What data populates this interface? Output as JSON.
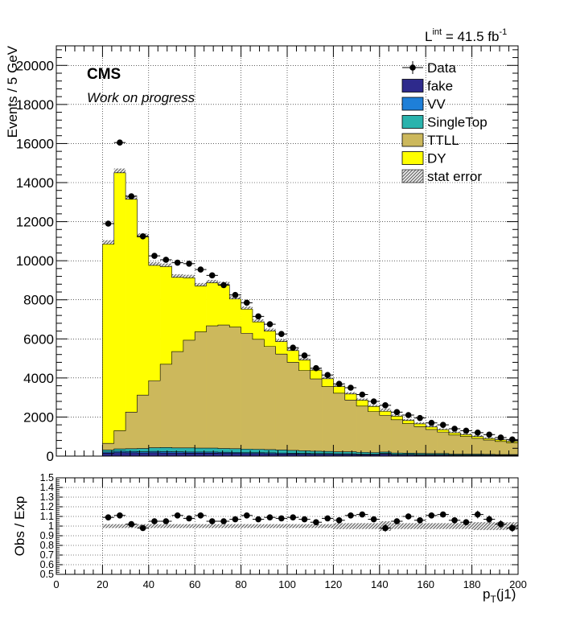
{
  "header": {
    "lumi_prefix": "L",
    "lumi_sup": "int",
    "lumi_value": " = 41.5 fb",
    "lumi_unit_sup": "-1",
    "experiment": "CMS",
    "status": "Work on progress"
  },
  "colors": {
    "fake": "#2e2a8c",
    "VV": "#1e7fd8",
    "SingleTop": "#2ab3ad",
    "TTLL": "#ccb85c",
    "DY": "#ffff00",
    "data": "#000000"
  },
  "chart_data": [
    {
      "type": "bar",
      "subtype": "stacked-histogram",
      "ylabel": "Events / 5 GeV",
      "xlim": [
        0,
        200
      ],
      "ylim": [
        0,
        21000
      ],
      "yticks": [
        0,
        2000,
        4000,
        6000,
        8000,
        10000,
        12000,
        14000,
        16000,
        18000,
        20000
      ],
      "grid": true,
      "bins_low_edge": [
        20,
        25,
        30,
        35,
        40,
        45,
        50,
        55,
        60,
        65,
        70,
        75,
        80,
        85,
        90,
        95,
        100,
        105,
        110,
        115,
        120,
        125,
        130,
        135,
        140,
        145,
        150,
        155,
        160,
        165,
        170,
        175,
        180,
        185,
        190,
        195
      ],
      "bin_width": 5,
      "series": [
        {
          "name": "fake",
          "values": [
            150,
            180,
            170,
            160,
            170,
            160,
            160,
            150,
            150,
            150,
            140,
            140,
            130,
            130,
            120,
            110,
            110,
            100,
            90,
            90,
            80,
            80,
            70,
            70,
            110,
            60,
            60,
            50,
            50,
            50,
            40,
            40,
            40,
            40,
            30,
            30
          ]
        },
        {
          "name": "VV",
          "values": [
            60,
            70,
            70,
            60,
            70,
            70,
            60,
            60,
            60,
            60,
            60,
            50,
            50,
            50,
            50,
            50,
            40,
            40,
            40,
            40,
            40,
            40,
            30,
            30,
            30,
            30,
            30,
            30,
            30,
            30,
            20,
            20,
            20,
            20,
            20,
            20
          ]
        },
        {
          "name": "SingleTop",
          "values": [
            100,
            120,
            140,
            170,
            190,
            210,
            200,
            210,
            200,
            200,
            190,
            190,
            180,
            170,
            160,
            150,
            140,
            130,
            120,
            110,
            100,
            100,
            90,
            80,
            70,
            70,
            60,
            60,
            50,
            50,
            40,
            40,
            40,
            30,
            30,
            30
          ]
        },
        {
          "name": "TTLL",
          "values": [
            340,
            930,
            1870,
            2730,
            3430,
            4260,
            4930,
            5510,
            5950,
            6260,
            6320,
            6220,
            5930,
            5630,
            5280,
            4910,
            4510,
            4110,
            3700,
            3320,
            3000,
            2650,
            2370,
            2100,
            1880,
            1700,
            1510,
            1370,
            1230,
            1100,
            980,
            900,
            810,
            730,
            670,
            600
          ]
        },
        {
          "name": "DY",
          "values": [
            10200,
            13200,
            10900,
            8100,
            5900,
            5000,
            3800,
            3200,
            2350,
            2200,
            2070,
            1440,
            1230,
            890,
            790,
            640,
            600,
            540,
            450,
            400,
            340,
            310,
            300,
            260,
            200,
            180,
            160,
            140,
            130,
            120,
            110,
            100,
            90,
            80,
            80,
            70
          ]
        },
        {
          "name": "stat error",
          "values": [
            200,
            220,
            200,
            180,
            170,
            160,
            160,
            150,
            150,
            150,
            150,
            140,
            140,
            130,
            130,
            120,
            120,
            110,
            110,
            100,
            100,
            100,
            90,
            90,
            150,
            90,
            80,
            80,
            80,
            70,
            70,
            70,
            70,
            60,
            60,
            60
          ]
        },
        {
          "name": "Data",
          "values": [
            11900,
            16050,
            13300,
            11250,
            10250,
            10050,
            9900,
            9850,
            9550,
            9250,
            8750,
            8250,
            7850,
            7150,
            6750,
            6250,
            5550,
            5150,
            4500,
            4150,
            3700,
            3500,
            3150,
            2800,
            2600,
            2250,
            2100,
            1950,
            1700,
            1600,
            1400,
            1300,
            1200,
            1100,
            950,
            850
          ]
        }
      ]
    },
    {
      "type": "scatter",
      "subtype": "ratio",
      "xlabel_main": "p",
      "xlabel_sub": "T",
      "xlabel_tail": "(j1)",
      "ylabel": "Obs / Exp",
      "xlim": [
        0,
        200
      ],
      "ylim": [
        0.5,
        1.5
      ],
      "yticks": [
        0.5,
        0.6,
        0.7,
        0.8,
        0.9,
        1,
        1.1,
        1.2,
        1.3,
        1.4,
        1.5
      ],
      "xticks": [
        0,
        20,
        40,
        60,
        80,
        100,
        120,
        140,
        160,
        180,
        200
      ],
      "grid": true,
      "x": [
        22.5,
        27.5,
        32.5,
        37.5,
        42.5,
        47.5,
        52.5,
        57.5,
        62.5,
        67.5,
        72.5,
        77.5,
        82.5,
        87.5,
        92.5,
        97.5,
        102.5,
        107.5,
        112.5,
        117.5,
        122.5,
        127.5,
        132.5,
        137.5,
        142.5,
        147.5,
        152.5,
        157.5,
        162.5,
        167.5,
        172.5,
        177.5,
        182.5,
        187.5,
        192.5,
        197.5
      ],
      "y": [
        1.09,
        1.11,
        1.02,
        0.98,
        1.05,
        1.05,
        1.11,
        1.08,
        1.11,
        1.05,
        1.05,
        1.07,
        1.11,
        1.07,
        1.09,
        1.08,
        1.09,
        1.07,
        1.04,
        1.08,
        1.06,
        1.11,
        1.12,
        1.07,
        0.98,
        1.05,
        1.1,
        1.06,
        1.11,
        1.12,
        1.06,
        1.04,
        1.12,
        1.07,
        1.02,
        0.98
      ],
      "err": [
        0.02,
        0.02,
        0.02,
        0.02,
        0.02,
        0.02,
        0.02,
        0.02,
        0.02,
        0.02,
        0.02,
        0.02,
        0.02,
        0.02,
        0.02,
        0.02,
        0.02,
        0.02,
        0.02,
        0.02,
        0.02,
        0.02,
        0.02,
        0.03,
        0.04,
        0.03,
        0.03,
        0.03,
        0.03,
        0.03,
        0.03,
        0.03,
        0.04,
        0.04,
        0.04,
        0.04
      ],
      "band": [
        0.02,
        0.02,
        0.02,
        0.02,
        0.02,
        0.02,
        0.02,
        0.02,
        0.02,
        0.02,
        0.02,
        0.02,
        0.02,
        0.02,
        0.02,
        0.02,
        0.02,
        0.02,
        0.02,
        0.02,
        0.03,
        0.03,
        0.03,
        0.03,
        0.05,
        0.03,
        0.03,
        0.03,
        0.03,
        0.03,
        0.03,
        0.03,
        0.04,
        0.04,
        0.04,
        0.04
      ]
    }
  ],
  "legend": {
    "placement": "top-right",
    "items": [
      {
        "label": "Data",
        "kind": "marker"
      },
      {
        "label": "fake",
        "kind": "fill",
        "color": "#2e2a8c"
      },
      {
        "label": "VV",
        "kind": "fill",
        "color": "#1e7fd8"
      },
      {
        "label": "SingleTop",
        "kind": "fill",
        "color": "#2ab3ad"
      },
      {
        "label": "TTLL",
        "kind": "fill",
        "color": "#ccb85c"
      },
      {
        "label": "DY",
        "kind": "fill",
        "color": "#ffff00"
      },
      {
        "label": "stat error",
        "kind": "hatch"
      }
    ]
  }
}
